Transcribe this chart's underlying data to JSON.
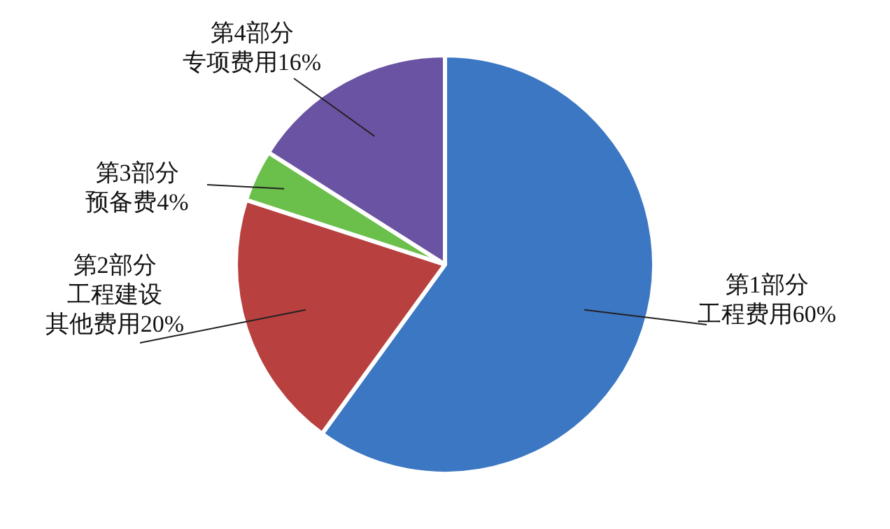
{
  "chart_data": {
    "type": "pie",
    "categories": [
      "第1部分工程费用60%",
      "第2部分工程建设其他费用20%",
      "第3部分预备费4%",
      "第4部分专项费用16%"
    ],
    "values": [
      60,
      20,
      4,
      16
    ],
    "colors": [
      "#3b77c2",
      "#b8403f",
      "#6bbf4b",
      "#6a53a2"
    ],
    "legend": false
  }
}
